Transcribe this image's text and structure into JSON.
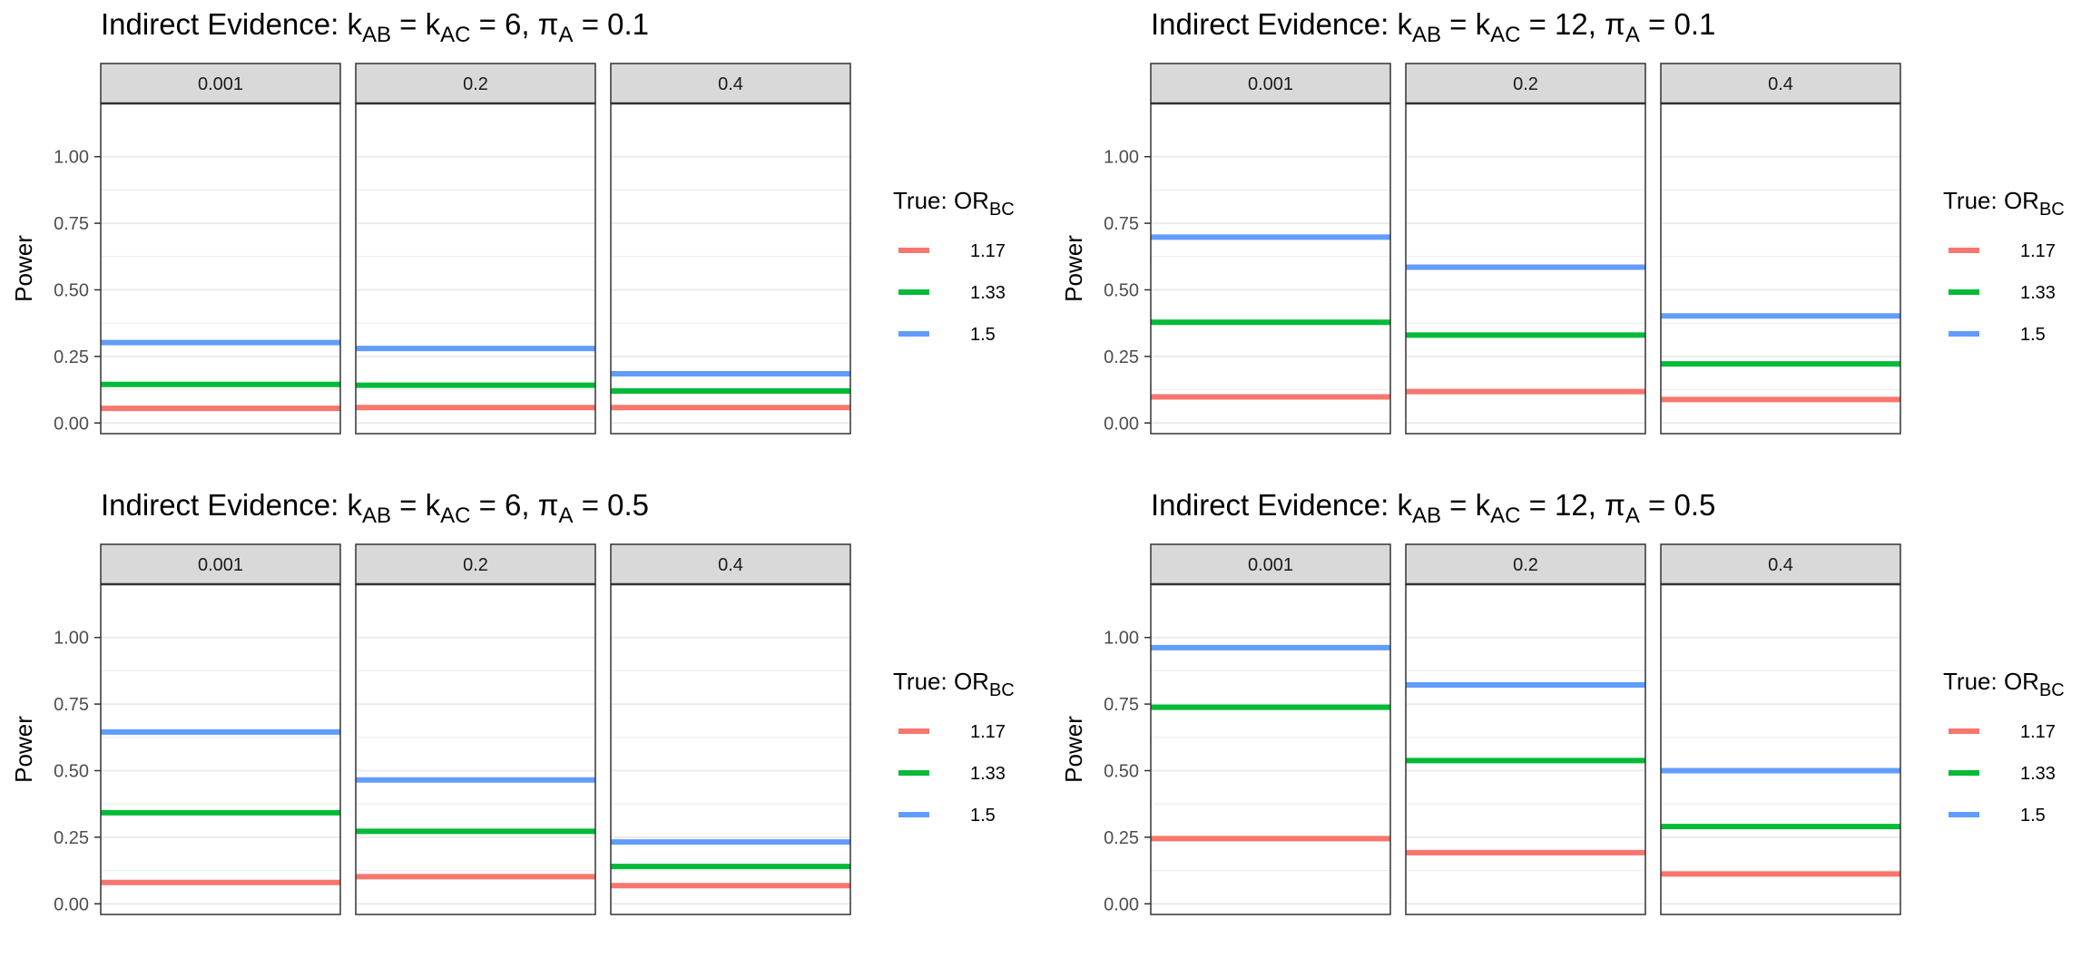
{
  "colors": {
    "strip_fill": "#d9d9d9",
    "panel_border": "#333333",
    "grid": "#ebebeb",
    "text": "#000000",
    "tick_text": "#4d4d4d"
  },
  "chart_data": [
    {
      "type": "line",
      "title": {
        "prefix": "Indirect Evidence: k",
        "sub1": "AB",
        "mid1": " = k",
        "sub2": "AC",
        "mid2": " = 6, π",
        "sub3": "A",
        "suffix": " = 0.1"
      },
      "ylabel": "Power",
      "ylim": [
        -0.04,
        1.2
      ],
      "yticks": [
        "0.00",
        "0.25",
        "0.50",
        "0.75",
        "1.00"
      ],
      "grid": true,
      "facets": [
        "0.001",
        "0.2",
        "0.4"
      ],
      "legend": {
        "title_main": "True: OR",
        "title_sub": "BC",
        "placement": "right"
      },
      "series": [
        {
          "name": "1.17",
          "color": "#f8766d",
          "values": [
            0.055,
            0.058,
            0.058
          ]
        },
        {
          "name": "1.33",
          "color": "#00ba38",
          "values": [
            0.145,
            0.142,
            0.12
          ]
        },
        {
          "name": "1.5",
          "color": "#619cff",
          "values": [
            0.302,
            0.28,
            0.185
          ]
        }
      ]
    },
    {
      "type": "line",
      "title": {
        "prefix": "Indirect Evidence: k",
        "sub1": "AB",
        "mid1": " = k",
        "sub2": "AC",
        "mid2": " = 12, π",
        "sub3": "A",
        "suffix": " = 0.1"
      },
      "ylabel": "Power",
      "ylim": [
        -0.04,
        1.2
      ],
      "yticks": [
        "0.00",
        "0.25",
        "0.50",
        "0.75",
        "1.00"
      ],
      "grid": true,
      "facets": [
        "0.001",
        "0.2",
        "0.4"
      ],
      "legend": {
        "title_main": "True: OR",
        "title_sub": "BC",
        "placement": "right"
      },
      "series": [
        {
          "name": "1.17",
          "color": "#f8766d",
          "values": [
            0.098,
            0.118,
            0.088
          ]
        },
        {
          "name": "1.33",
          "color": "#00ba38",
          "values": [
            0.378,
            0.33,
            0.222
          ]
        },
        {
          "name": "1.5",
          "color": "#619cff",
          "values": [
            0.698,
            0.585,
            0.402
          ]
        }
      ]
    },
    {
      "type": "line",
      "title": {
        "prefix": "Indirect Evidence: k",
        "sub1": "AB",
        "mid1": " = k",
        "sub2": "AC",
        "mid2": " = 6, π",
        "sub3": "A",
        "suffix": " = 0.5"
      },
      "ylabel": "Power",
      "ylim": [
        -0.04,
        1.2
      ],
      "yticks": [
        "0.00",
        "0.25",
        "0.50",
        "0.75",
        "1.00"
      ],
      "grid": true,
      "facets": [
        "0.001",
        "0.2",
        "0.4"
      ],
      "legend": {
        "title_main": "True: OR",
        "title_sub": "BC",
        "placement": "right"
      },
      "series": [
        {
          "name": "1.17",
          "color": "#f8766d",
          "values": [
            0.08,
            0.102,
            0.068
          ]
        },
        {
          "name": "1.33",
          "color": "#00ba38",
          "values": [
            0.342,
            0.272,
            0.14
          ]
        },
        {
          "name": "1.5",
          "color": "#619cff",
          "values": [
            0.645,
            0.465,
            0.232
          ]
        }
      ]
    },
    {
      "type": "line",
      "title": {
        "prefix": "Indirect Evidence: k",
        "sub1": "AB",
        "mid1": " = k",
        "sub2": "AC",
        "mid2": " = 12, π",
        "sub3": "A",
        "suffix": " = 0.5"
      },
      "ylabel": "Power",
      "ylim": [
        -0.04,
        1.2
      ],
      "yticks": [
        "0.00",
        "0.25",
        "0.50",
        "0.75",
        "1.00"
      ],
      "grid": true,
      "facets": [
        "0.001",
        "0.2",
        "0.4"
      ],
      "legend": {
        "title_main": "True: OR",
        "title_sub": "BC",
        "placement": "right"
      },
      "series": [
        {
          "name": "1.17",
          "color": "#f8766d",
          "values": [
            0.245,
            0.192,
            0.112
          ]
        },
        {
          "name": "1.33",
          "color": "#00ba38",
          "values": [
            0.738,
            0.538,
            0.29
          ]
        },
        {
          "name": "1.5",
          "color": "#619cff",
          "values": [
            0.962,
            0.822,
            0.5
          ]
        }
      ]
    }
  ]
}
